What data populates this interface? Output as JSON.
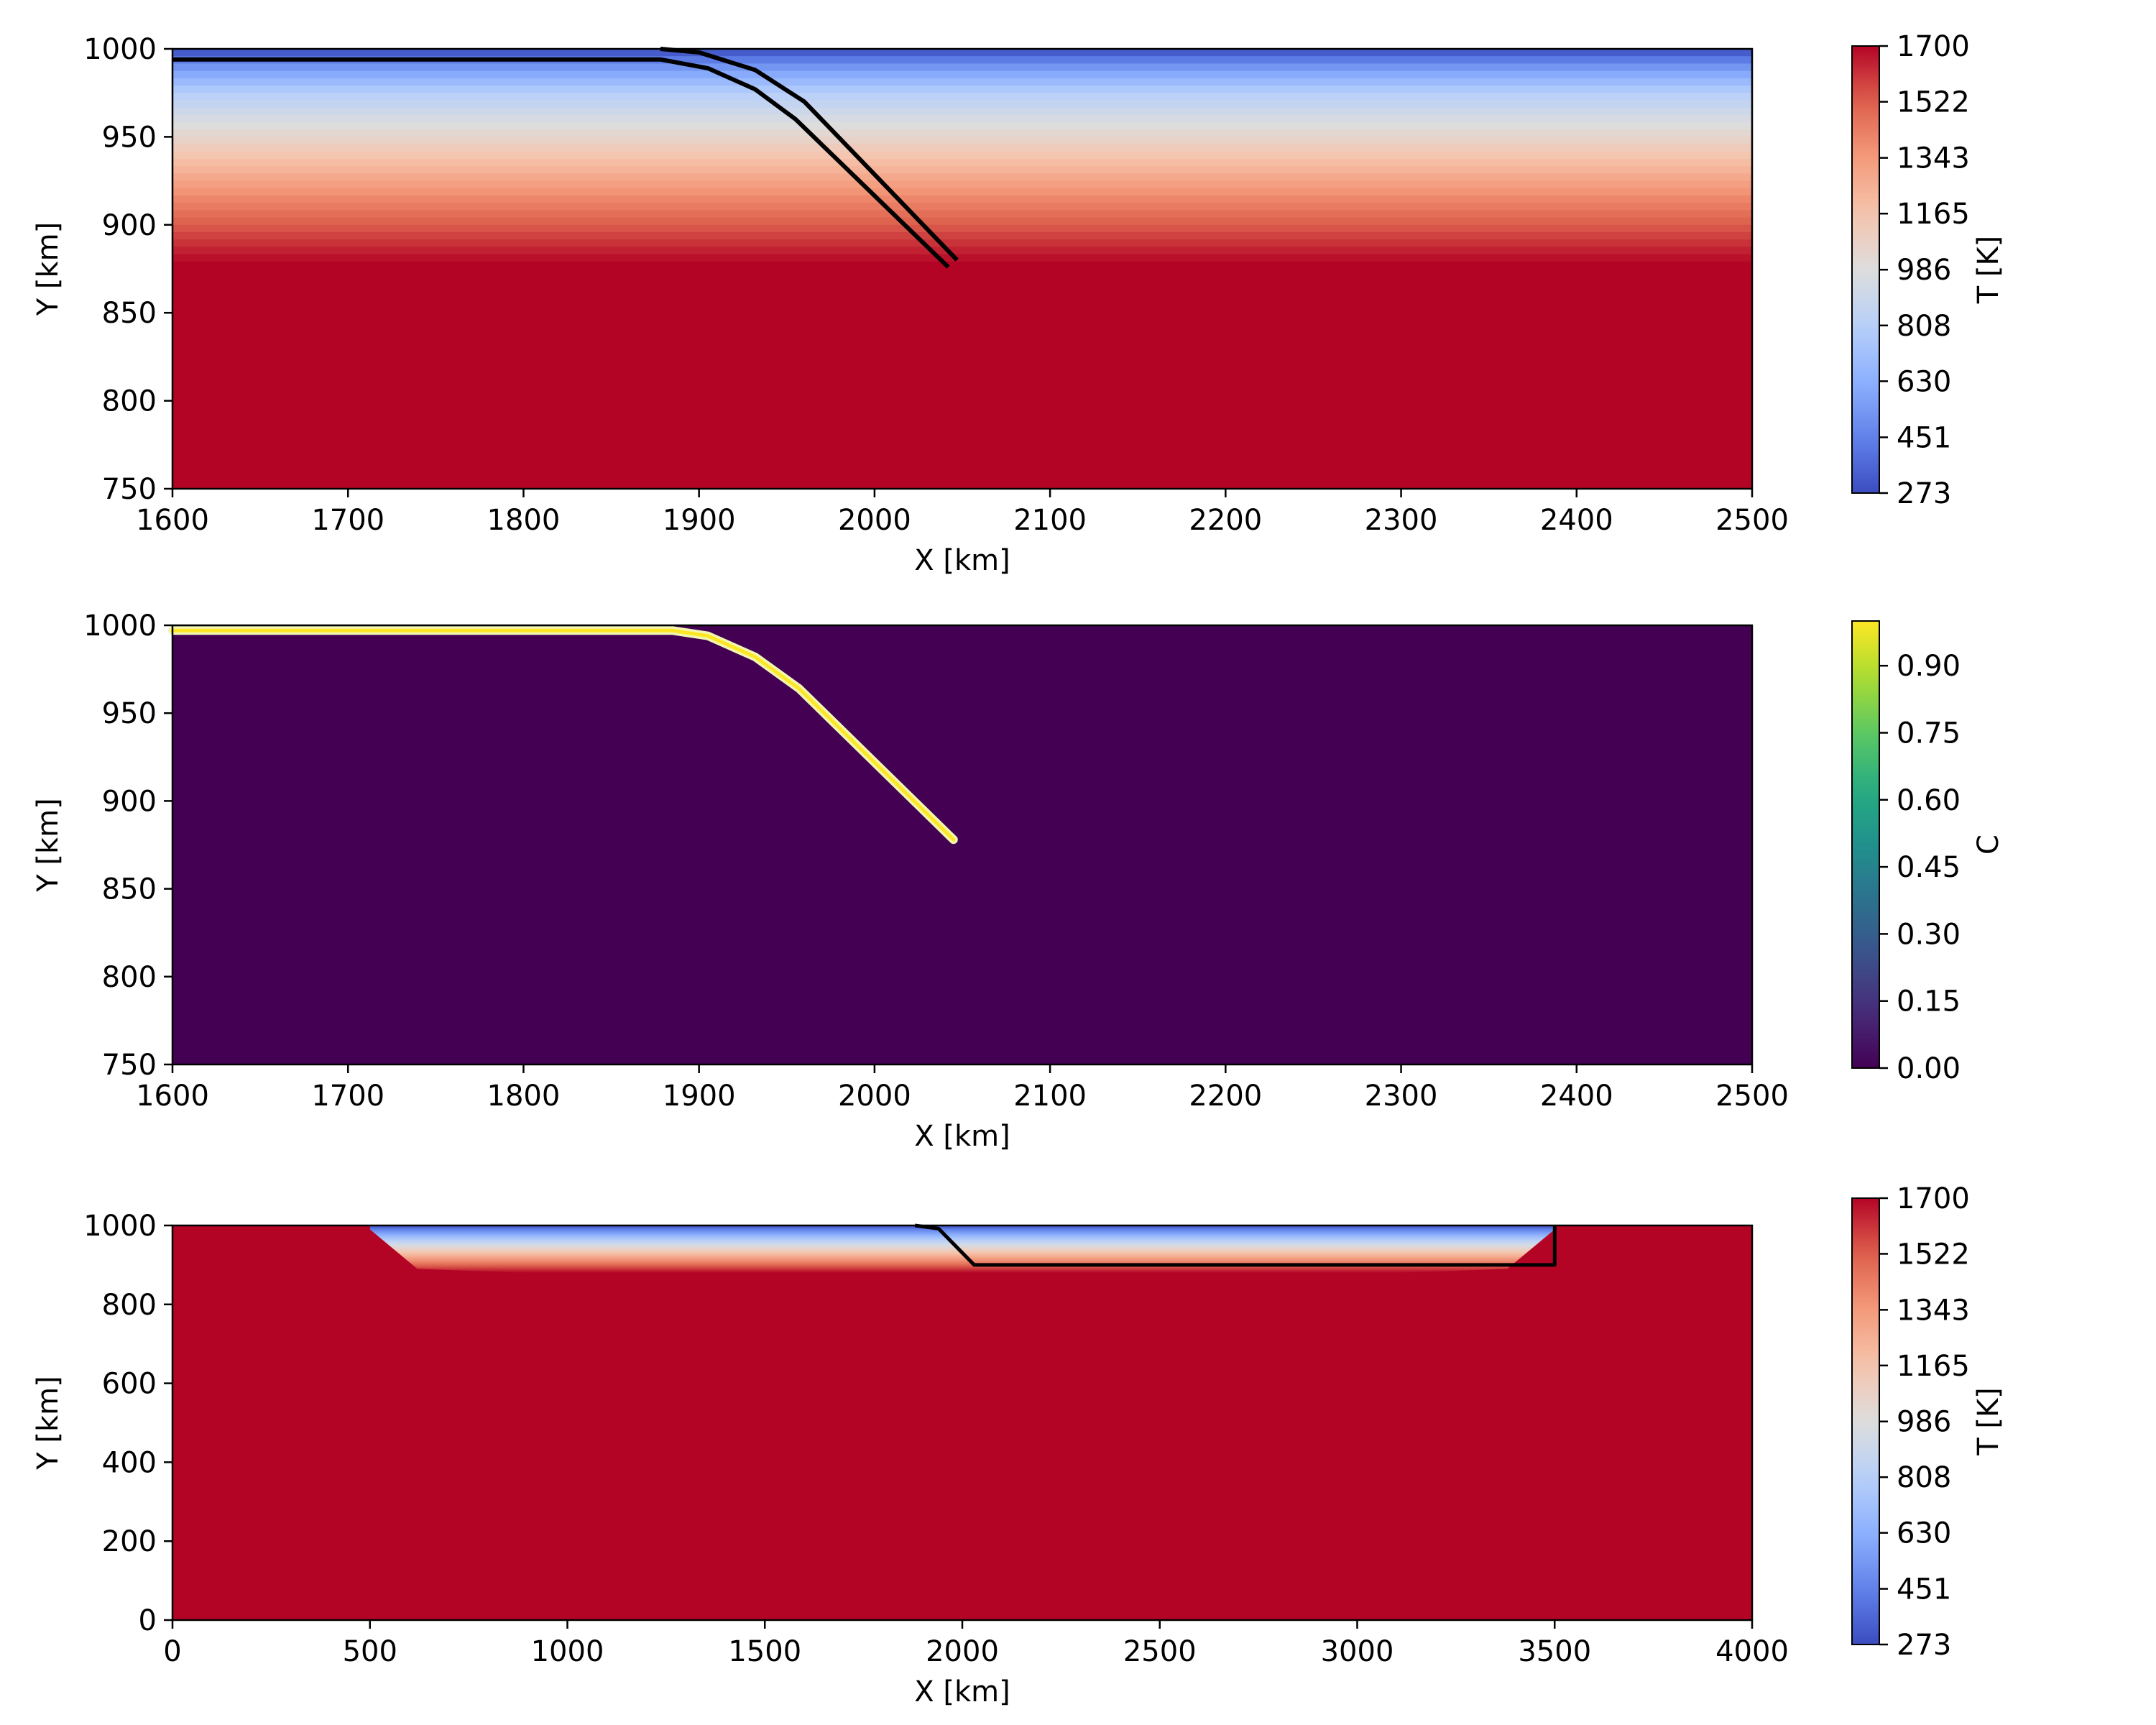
{
  "chart_data": [
    {
      "type": "heatmap",
      "field": "temperature",
      "xlabel": "X [km]",
      "ylabel": "Y [km]",
      "xlim": [
        1600,
        2500
      ],
      "ylim": [
        750,
        1000
      ],
      "xticks": [
        "1600",
        "1700",
        "1800",
        "1900",
        "2000",
        "2100",
        "2200",
        "2300",
        "2400",
        "2500"
      ],
      "yticks": [
        "750",
        "800",
        "850",
        "900",
        "950",
        "1000"
      ],
      "colorbar": {
        "label": "T [K]",
        "colormap": "coolwarm",
        "range": [
          273,
          1700
        ],
        "ticks": [
          "273",
          "451",
          "630",
          "808",
          "986",
          "1165",
          "1343",
          "1522",
          "1700"
        ]
      },
      "temperature_profile": [
        {
          "y": 1000,
          "T": 273
        },
        {
          "y": 990,
          "T": 520
        },
        {
          "y": 975,
          "T": 800
        },
        {
          "y": 955,
          "T": 1000
        },
        {
          "y": 935,
          "T": 1200
        },
        {
          "y": 915,
          "T": 1400
        },
        {
          "y": 895,
          "T": 1570
        },
        {
          "y": 878,
          "T": 1700
        },
        {
          "y": 750,
          "T": 1700
        }
      ],
      "slab_outline": [
        [
          {
            "x": 1600,
            "y": 994
          },
          {
            "x": 1878,
            "y": 994
          },
          {
            "x": 1905,
            "y": 989
          },
          {
            "x": 1932,
            "y": 977
          },
          {
            "x": 1955,
            "y": 960
          },
          {
            "x": 2042,
            "y": 876
          }
        ],
        [
          {
            "x": 1878,
            "y": 1000
          },
          {
            "x": 1900,
            "y": 998
          },
          {
            "x": 1932,
            "y": 988
          },
          {
            "x": 1960,
            "y": 970
          },
          {
            "x": 2047,
            "y": 880
          }
        ]
      ]
    },
    {
      "type": "heatmap",
      "field": "composition",
      "xlabel": "X [km]",
      "ylabel": "Y [km]",
      "xlim": [
        1600,
        2500
      ],
      "ylim": [
        750,
        1000
      ],
      "xticks": [
        "1600",
        "1700",
        "1800",
        "1900",
        "2000",
        "2100",
        "2200",
        "2300",
        "2400",
        "2500"
      ],
      "yticks": [
        "750",
        "800",
        "850",
        "900",
        "950",
        "1000"
      ],
      "colorbar": {
        "label": "C",
        "colormap": "viridis",
        "range": [
          0,
          1
        ],
        "ticks": [
          "0.00",
          "0.15",
          "0.30",
          "0.45",
          "0.60",
          "0.75",
          "0.90"
        ]
      },
      "background_value": 0,
      "slab_value": 1,
      "slab_path": [
        {
          "x": 1600,
          "y": 997
        },
        {
          "x": 1885,
          "y": 997
        },
        {
          "x": 1905,
          "y": 994
        },
        {
          "x": 1932,
          "y": 982
        },
        {
          "x": 1957,
          "y": 964
        },
        {
          "x": 2045,
          "y": 878
        }
      ]
    },
    {
      "type": "heatmap",
      "field": "temperature",
      "xlabel": "X [km]",
      "ylabel": "Y [km]",
      "xlim": [
        0,
        4000
      ],
      "ylim": [
        0,
        1000
      ],
      "xticks": [
        "0",
        "500",
        "1000",
        "1500",
        "2000",
        "2500",
        "3000",
        "3500",
        "4000"
      ],
      "yticks": [
        "0",
        "200",
        "400",
        "600",
        "800",
        "1000"
      ],
      "colorbar": {
        "label": "T [K]",
        "colormap": "coolwarm",
        "range": [
          273,
          1700
        ],
        "ticks": [
          "273",
          "451",
          "630",
          "808",
          "986",
          "1165",
          "1343",
          "1522",
          "1700"
        ]
      },
      "plate_extent": [
        500,
        3500
      ],
      "plate_base_depth": 880,
      "plate_outline": [
        {
          "x": 1880,
          "y": 1000
        },
        {
          "x": 1940,
          "y": 992
        },
        {
          "x": 2030,
          "y": 900
        },
        {
          "x": 3500,
          "y": 900
        },
        {
          "x": 3500,
          "y": 1000
        }
      ]
    }
  ]
}
